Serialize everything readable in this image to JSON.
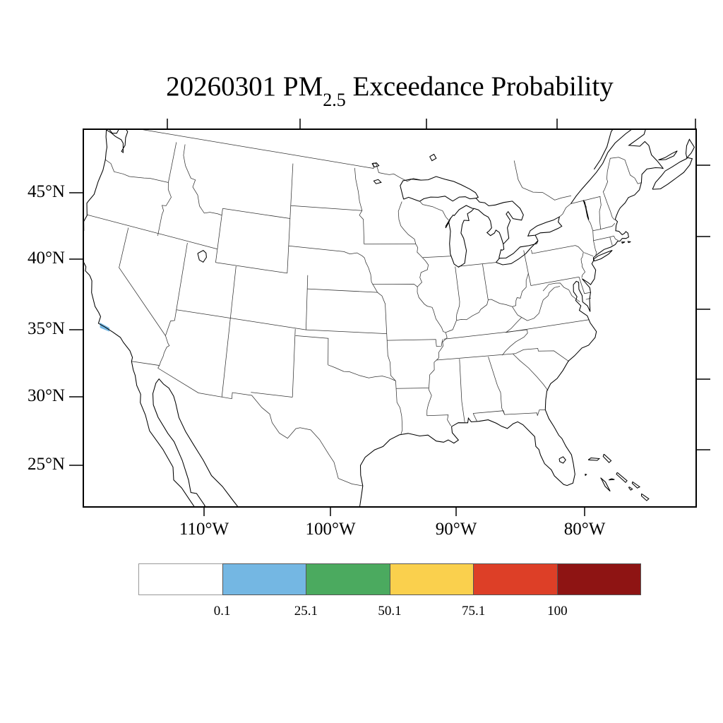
{
  "figure": {
    "title": {
      "prefix": "20260301 PM",
      "subscript": "2.5",
      "suffix": " Exceedance Probability"
    }
  },
  "map": {
    "lat_tick_labels": [
      "45°N",
      "40°N",
      "35°N",
      "30°N",
      "25°N"
    ],
    "lon_tick_labels": [
      "110°W",
      "100°W",
      "90°W",
      "80°W"
    ],
    "highlight_patch": {
      "color": "#74b7e3",
      "location": "southern California coast"
    }
  },
  "colorbar": {
    "tick_labels": [
      "0.1",
      "25.1",
      "50.1",
      "75.1",
      "100"
    ],
    "segment_colors": [
      "#ffffff",
      "#74b7e3",
      "#4baa5f",
      "#fad04d",
      "#dd3f27",
      "#8e1413"
    ]
  }
}
